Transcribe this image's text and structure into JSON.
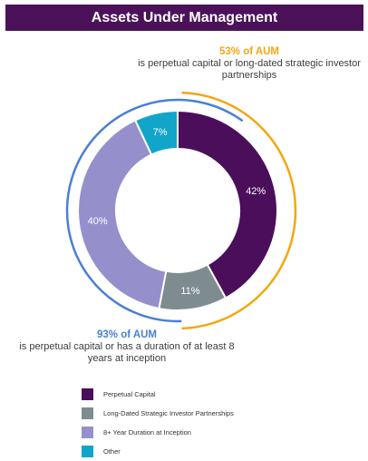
{
  "header": {
    "title": "Assets Under Management"
  },
  "callouts": {
    "top": {
      "highlight": "53% of AUM",
      "text": "is perpetual capital or long-dated strategic investor partnerships"
    },
    "bottom": {
      "highlight": "93% of AUM",
      "text": "is perpetual capital or has a duration of at least 8 years at inception"
    }
  },
  "colors": {
    "header_bg": "#4b1259",
    "top_arc": "#f3a712",
    "bottom_arc": "#4a7fd6"
  },
  "chart_data": {
    "type": "pie",
    "title": "Assets Under Management",
    "series": [
      {
        "name": "Perpetual Capital",
        "value": 42,
        "label": "42%",
        "color": "#4b0e5a"
      },
      {
        "name": "Long-Dated Strategic Investor Partnerships",
        "value": 11,
        "label": "11%",
        "color": "#7f8c8f"
      },
      {
        "name": "8+ Year Duration at Inception",
        "value": 40,
        "label": "40%",
        "color": "#9590cc"
      },
      {
        "name": "Other",
        "value": 7,
        "label": "7%",
        "color": "#11a6c9"
      }
    ],
    "legend_position": "bottom"
  }
}
